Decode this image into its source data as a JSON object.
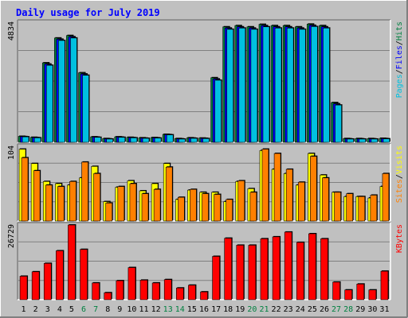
{
  "chart_data": {
    "type": "bar",
    "title": "Daily usage for July 2019",
    "categories": [
      "1",
      "2",
      "3",
      "4",
      "5",
      "6",
      "7",
      "8",
      "9",
      "10",
      "11",
      "12",
      "13",
      "14",
      "15",
      "16",
      "17",
      "18",
      "19",
      "20",
      "21",
      "22",
      "23",
      "24",
      "25",
      "26",
      "27",
      "28",
      "29",
      "30",
      "31"
    ],
    "weekend_days": [
      "6",
      "7",
      "13",
      "14",
      "20",
      "21",
      "27",
      "28"
    ],
    "panels": [
      {
        "id": "hits",
        "axis_max_label": "4834",
        "ylim": [
          0,
          4834
        ],
        "legend": [
          {
            "text": "Pages",
            "color": "#00c0e0"
          },
          {
            "sep": "/"
          },
          {
            "text": "Files",
            "color": "#0000ff"
          },
          {
            "sep": "/"
          },
          {
            "text": "Hits",
            "color": "#008040"
          }
        ],
        "series": [
          {
            "name": "Hits",
            "color": "#008040",
            "values": [
              240,
              200,
              3200,
              4200,
              4300,
              2800,
              220,
              150,
              220,
              200,
              180,
              190,
              320,
              150,
              180,
              170,
              2600,
              4650,
              4700,
              4650,
              4750,
              4700,
              4700,
              4650,
              4760,
              4700,
              1600,
              150,
              150,
              150,
              160
            ]
          },
          {
            "name": "Files",
            "color": "#0000ff",
            "values": [
              230,
              190,
              3150,
              4150,
              4250,
              2750,
              210,
              140,
              210,
              190,
              170,
              180,
              310,
              140,
              170,
              160,
              2550,
              4600,
              4650,
              4600,
              4700,
              4650,
              4650,
              4600,
              4710,
              4650,
              1550,
              140,
              140,
              140,
              150
            ]
          },
          {
            "name": "Pages",
            "color": "#00c0e0",
            "values": [
              220,
              180,
              3100,
              4100,
              4200,
              2700,
              200,
              130,
              200,
              180,
              160,
              170,
              300,
              130,
              160,
              150,
              2500,
              4550,
              4600,
              4550,
              4650,
              4600,
              4600,
              4550,
              4660,
              4600,
              1500,
              130,
              130,
              130,
              140
            ]
          }
        ]
      },
      {
        "id": "visits",
        "axis_max_label": "104",
        "ylim": [
          0,
          104
        ],
        "legend": [
          {
            "text": "Sites",
            "color": "#ff8000"
          },
          {
            "sep": "/"
          },
          {
            "text": "Visits",
            "color": "#ffff00"
          }
        ],
        "series": [
          {
            "name": "Visits",
            "color": "#ffff00",
            "values": [
              100,
              80,
              55,
              52,
              50,
              60,
              76,
              27,
              47,
              56,
              42,
              52,
              80,
              30,
              43,
              40,
              40,
              27,
              55,
              45,
              98,
              72,
              66,
              50,
              94,
              64,
              40,
              34,
              34,
              32,
              48
            ]
          },
          {
            "name": "Sites",
            "color": "#ff8000",
            "values": [
              88,
              70,
              50,
              48,
              55,
              82,
              66,
              25,
              48,
              52,
              38,
              44,
              75,
              33,
              44,
              38,
              37,
              30,
              56,
              40,
              100,
              94,
              72,
              54,
              90,
              60,
              40,
              38,
              34,
              36,
              66
            ]
          }
        ]
      },
      {
        "id": "kbytes",
        "axis_max_label": "26729",
        "ylim": [
          0,
          26729
        ],
        "legend": [
          {
            "text": "KBytes",
            "color": "#ff0000"
          }
        ],
        "series": [
          {
            "name": "KBytes",
            "color": "#ff0000",
            "values": [
              8400,
              10000,
              13000,
              17500,
              26729,
              18000,
              6000,
              2500,
              6800,
              11500,
              7000,
              6000,
              7200,
              4200,
              5200,
              2800,
              15500,
              22000,
              19500,
              19500,
              21800,
              22500,
              24200,
              20500,
              23600,
              21800,
              6300,
              3500,
              5600,
              3500,
              10200
            ]
          }
        ]
      }
    ]
  }
}
